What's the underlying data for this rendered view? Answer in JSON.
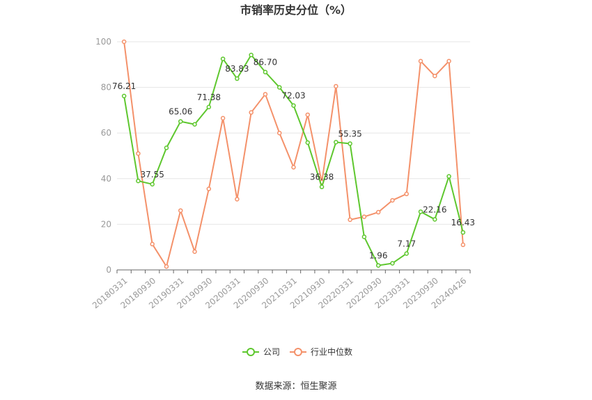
{
  "chart_data": {
    "type": "line",
    "title": "市销率历史分位（%）",
    "source": "数据来源：恒生聚源",
    "ylim": [
      0,
      100
    ],
    "yticks": [
      0,
      20,
      40,
      60,
      80,
      100
    ],
    "x": [
      "20180331",
      "20180630",
      "20180930",
      "20181231",
      "20190331",
      "20190630",
      "20190930",
      "20191231",
      "20200331",
      "20200630",
      "20200930",
      "20201231",
      "20210331",
      "20210630",
      "20210930",
      "20211231",
      "20220331",
      "20220630",
      "20220930",
      "20221231",
      "20230331",
      "20230630",
      "20230930",
      "20231231",
      "20240426"
    ],
    "xtick_labels": [
      "20180331",
      "",
      "20180930",
      "",
      "20190331",
      "",
      "20190930",
      "",
      "20200331",
      "",
      "20200930",
      "",
      "20210331",
      "",
      "20210930",
      "",
      "20220331",
      "",
      "20220930",
      "",
      "20230331",
      "",
      "20230930",
      "",
      "20240426"
    ],
    "legend_position": "bottom",
    "series": [
      {
        "name": "公司",
        "color": "#5ec72e",
        "values": [
          76.21,
          39.0,
          37.55,
          53.5,
          65.06,
          63.8,
          71.38,
          92.5,
          83.83,
          94.2,
          86.7,
          80.0,
          72.03,
          55.8,
          36.38,
          56.0,
          55.35,
          14.5,
          1.96,
          2.9,
          7.17,
          25.5,
          22.16,
          41.0,
          16.43
        ],
        "labels": [
          "76.21",
          "",
          "37.55",
          "",
          "65.06",
          "",
          "71.38",
          "",
          "83.83",
          "",
          "86.70",
          "",
          "72.03",
          "",
          "36.38",
          "",
          "55.35",
          "",
          "1.96",
          "",
          "7.17",
          "",
          "22.16",
          "",
          "16.43"
        ]
      },
      {
        "name": "行业中位数",
        "color": "#f4916a",
        "values": [
          100.0,
          51.0,
          11.3,
          1.5,
          26.0,
          8.0,
          35.5,
          66.5,
          31.0,
          69.0,
          77.0,
          60.0,
          45.0,
          68.0,
          38.5,
          80.5,
          22.0,
          23.3,
          25.3,
          30.5,
          33.3,
          91.5,
          85.0,
          91.5,
          11.0
        ]
      }
    ]
  }
}
